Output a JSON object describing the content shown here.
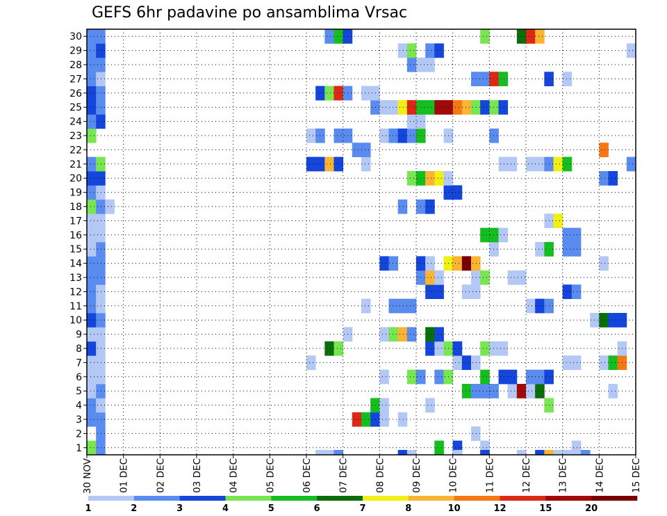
{
  "chart_data": {
    "type": "heatmap",
    "title": "GEFS 6hr padavine po ansamblima Vrsac",
    "xlabel": "",
    "ylabel": "",
    "x_tick_labels": [
      "30 NOV",
      "01 DEC",
      "02 DEC",
      "03 DEC",
      "04 DEC",
      "05 DEC",
      "06 DEC",
      "07 DEC",
      "08 DEC",
      "09 DEC",
      "10 DEC",
      "11 DEC",
      "12 DEC",
      "13 DEC",
      "14 DEC",
      "15 DEC"
    ],
    "y_tick_labels": [
      "1",
      "2",
      "3",
      "4",
      "5",
      "6",
      "7",
      "8",
      "9",
      "10",
      "11",
      "12",
      "13",
      "14",
      "15",
      "16",
      "17",
      "18",
      "19",
      "20",
      "21",
      "22",
      "23",
      "24",
      "25",
      "26",
      "27",
      "28",
      "29",
      "30"
    ],
    "ylim": [
      0,
      30
    ],
    "grid": true,
    "legend": {
      "position": "bottom",
      "levels": [
        "1",
        "2",
        "3",
        "4",
        "5",
        "6",
        "7",
        "8",
        "10",
        "12",
        "15",
        "20"
      ],
      "colors": [
        "#b4c8f5",
        "#5a8cf0",
        "#1446dc",
        "#78e650",
        "#14be1e",
        "#0a6e0a",
        "#f0f014",
        "#fab432",
        "#f57814",
        "#dc2814",
        "#a00a0a",
        "#780000"
      ]
    },
    "colors": {
      "1": "#b4c8f5",
      "2": "#5a8cf0",
      "3": "#1446dc",
      "4": "#78e650",
      "5": "#14be1e",
      "6": "#0a6e0a",
      "7": "#f0f014",
      "8": "#fab432",
      "9": "#f57814",
      "10": "#dc2814",
      "11": "#a00a0a",
      "12": "#780000"
    },
    "cells": [
      [
        1,
        1,
        4
      ],
      [
        1,
        2,
        2
      ],
      [
        2,
        2,
        2
      ],
      [
        3,
        1,
        2
      ],
      [
        3,
        2,
        2
      ],
      [
        4,
        1,
        2
      ],
      [
        4,
        2,
        1
      ],
      [
        5,
        1,
        1
      ],
      [
        5,
        2,
        2
      ],
      [
        6,
        1,
        1
      ],
      [
        6,
        2,
        1
      ],
      [
        7,
        1,
        1
      ],
      [
        7,
        2,
        1
      ],
      [
        8,
        1,
        3
      ],
      [
        8,
        2,
        1
      ],
      [
        9,
        1,
        1
      ],
      [
        9,
        2,
        1
      ],
      [
        10,
        1,
        3
      ],
      [
        10,
        2,
        2
      ],
      [
        11,
        1,
        2
      ],
      [
        11,
        2,
        1
      ],
      [
        12,
        1,
        2
      ],
      [
        12,
        2,
        1
      ],
      [
        13,
        1,
        2
      ],
      [
        13,
        2,
        2
      ],
      [
        14,
        1,
        2
      ],
      [
        14,
        2,
        2
      ],
      [
        15,
        1,
        1
      ],
      [
        15,
        2,
        2
      ],
      [
        16,
        1,
        1
      ],
      [
        16,
        2,
        1
      ],
      [
        17,
        1,
        1
      ],
      [
        17,
        2,
        1
      ],
      [
        18,
        1,
        4
      ],
      [
        18,
        2,
        2
      ],
      [
        18,
        3,
        1
      ],
      [
        19,
        1,
        2
      ],
      [
        19,
        2,
        1
      ],
      [
        20,
        1,
        3
      ],
      [
        20,
        2,
        3
      ],
      [
        21,
        1,
        2
      ],
      [
        21,
        2,
        4
      ],
      [
        23,
        1,
        4
      ],
      [
        24,
        1,
        2
      ],
      [
        24,
        2,
        3
      ],
      [
        25,
        1,
        3
      ],
      [
        25,
        2,
        2
      ],
      [
        26,
        1,
        3
      ],
      [
        26,
        2,
        2
      ],
      [
        27,
        1,
        2
      ],
      [
        27,
        2,
        1
      ],
      [
        28,
        1,
        2
      ],
      [
        28,
        2,
        2
      ],
      [
        29,
        1,
        2
      ],
      [
        29,
        2,
        3
      ],
      [
        30,
        1,
        2
      ],
      [
        30,
        2,
        2
      ],
      [
        1,
        39,
        5
      ],
      [
        1,
        41,
        3
      ],
      [
        1,
        44,
        1
      ],
      [
        1,
        54,
        1
      ],
      [
        1,
        66,
        2
      ],
      [
        1,
        67,
        1
      ],
      [
        2,
        43,
        1
      ],
      [
        3,
        30,
        10
      ],
      [
        3,
        31,
        5
      ],
      [
        3,
        32,
        3
      ],
      [
        3,
        33,
        1
      ],
      [
        3,
        35,
        1
      ],
      [
        4,
        32,
        5
      ],
      [
        4,
        33,
        1
      ],
      [
        4,
        38,
        1
      ],
      [
        4,
        51,
        4
      ],
      [
        5,
        42,
        5
      ],
      [
        5,
        43,
        2
      ],
      [
        5,
        44,
        2
      ],
      [
        5,
        45,
        2
      ],
      [
        5,
        47,
        1
      ],
      [
        5,
        48,
        11
      ],
      [
        5,
        49,
        1
      ],
      [
        5,
        50,
        6
      ],
      [
        5,
        58,
        1
      ],
      [
        6,
        33,
        1
      ],
      [
        6,
        36,
        4
      ],
      [
        6,
        37,
        2
      ],
      [
        6,
        39,
        2
      ],
      [
        6,
        40,
        4
      ],
      [
        6,
        44,
        5
      ],
      [
        6,
        46,
        3
      ],
      [
        6,
        47,
        3
      ],
      [
        6,
        49,
        2
      ],
      [
        6,
        50,
        2
      ],
      [
        6,
        51,
        3
      ],
      [
        7,
        25,
        1
      ],
      [
        7,
        41,
        1
      ],
      [
        7,
        42,
        3
      ],
      [
        7,
        43,
        1
      ],
      [
        7,
        53,
        1
      ],
      [
        7,
        54,
        1
      ],
      [
        7,
        57,
        1
      ],
      [
        7,
        58,
        5
      ],
      [
        7,
        59,
        9
      ],
      [
        8,
        27,
        6
      ],
      [
        8,
        28,
        4
      ],
      [
        8,
        38,
        3
      ],
      [
        8,
        39,
        1
      ],
      [
        8,
        40,
        4
      ],
      [
        8,
        41,
        3
      ],
      [
        8,
        44,
        4
      ],
      [
        8,
        45,
        1
      ],
      [
        8,
        46,
        1
      ],
      [
        8,
        59,
        1
      ],
      [
        9,
        29,
        1
      ],
      [
        9,
        33,
        1
      ],
      [
        9,
        34,
        4
      ],
      [
        9,
        35,
        8
      ],
      [
        9,
        36,
        2
      ],
      [
        9,
        38,
        6
      ],
      [
        9,
        39,
        3
      ],
      [
        10,
        56,
        1
      ],
      [
        10,
        57,
        6
      ],
      [
        10,
        58,
        3
      ],
      [
        10,
        59,
        3
      ],
      [
        11,
        31,
        1
      ],
      [
        11,
        34,
        2
      ],
      [
        11,
        35,
        2
      ],
      [
        11,
        36,
        2
      ],
      [
        11,
        49,
        1
      ],
      [
        11,
        50,
        3
      ],
      [
        11,
        51,
        2
      ],
      [
        12,
        38,
        3
      ],
      [
        12,
        39,
        3
      ],
      [
        12,
        42,
        1
      ],
      [
        12,
        43,
        1
      ],
      [
        12,
        53,
        3
      ],
      [
        12,
        54,
        2
      ],
      [
        13,
        37,
        2
      ],
      [
        13,
        38,
        8
      ],
      [
        13,
        39,
        1
      ],
      [
        13,
        43,
        1
      ],
      [
        13,
        44,
        4
      ],
      [
        13,
        47,
        1
      ],
      [
        13,
        48,
        1
      ],
      [
        14,
        33,
        3
      ],
      [
        14,
        34,
        2
      ],
      [
        14,
        37,
        3
      ],
      [
        14,
        38,
        1
      ],
      [
        14,
        40,
        7
      ],
      [
        14,
        41,
        8
      ],
      [
        14,
        42,
        12
      ],
      [
        14,
        43,
        8
      ],
      [
        14,
        57,
        1
      ],
      [
        15,
        45,
        1
      ],
      [
        15,
        50,
        1
      ],
      [
        15,
        51,
        5
      ],
      [
        15,
        53,
        2
      ],
      [
        15,
        54,
        2
      ],
      [
        16,
        44,
        5
      ],
      [
        16,
        45,
        5
      ],
      [
        16,
        46,
        1
      ],
      [
        16,
        53,
        2
      ],
      [
        16,
        54,
        2
      ],
      [
        17,
        51,
        1
      ],
      [
        17,
        52,
        7
      ],
      [
        18,
        35,
        2
      ],
      [
        18,
        37,
        2
      ],
      [
        18,
        38,
        3
      ],
      [
        19,
        40,
        3
      ],
      [
        19,
        41,
        3
      ],
      [
        20,
        36,
        4
      ],
      [
        20,
        37,
        5
      ],
      [
        20,
        38,
        8
      ],
      [
        20,
        39,
        7
      ],
      [
        20,
        40,
        1
      ],
      [
        20,
        57,
        2
      ],
      [
        20,
        58,
        3
      ],
      [
        21,
        25,
        3
      ],
      [
        21,
        26,
        3
      ],
      [
        21,
        27,
        8
      ],
      [
        21,
        28,
        3
      ],
      [
        21,
        31,
        1
      ],
      [
        21,
        46,
        1
      ],
      [
        21,
        47,
        1
      ],
      [
        21,
        49,
        1
      ],
      [
        21,
        50,
        1
      ],
      [
        21,
        51,
        2
      ],
      [
        21,
        52,
        7
      ],
      [
        21,
        53,
        5
      ],
      [
        21,
        60,
        2
      ],
      [
        22,
        30,
        2
      ],
      [
        22,
        31,
        2
      ],
      [
        22,
        57,
        9
      ],
      [
        23,
        25,
        1
      ],
      [
        23,
        26,
        2
      ],
      [
        23,
        28,
        2
      ],
      [
        23,
        29,
        2
      ],
      [
        23,
        33,
        1
      ],
      [
        23,
        34,
        2
      ],
      [
        23,
        35,
        3
      ],
      [
        23,
        36,
        2
      ],
      [
        23,
        37,
        5
      ],
      [
        23,
        40,
        1
      ],
      [
        23,
        45,
        2
      ],
      [
        24,
        36,
        1
      ],
      [
        24,
        37,
        1
      ],
      [
        25,
        32,
        2
      ],
      [
        25,
        33,
        1
      ],
      [
        25,
        34,
        1
      ],
      [
        25,
        35,
        7
      ],
      [
        25,
        36,
        10
      ],
      [
        25,
        37,
        5
      ],
      [
        25,
        38,
        5
      ],
      [
        25,
        39,
        11
      ],
      [
        25,
        40,
        11
      ],
      [
        25,
        41,
        9
      ],
      [
        25,
        42,
        8
      ],
      [
        25,
        43,
        4
      ],
      [
        25,
        44,
        3
      ],
      [
        25,
        45,
        4
      ],
      [
        25,
        46,
        3
      ],
      [
        26,
        26,
        3
      ],
      [
        26,
        27,
        4
      ],
      [
        26,
        28,
        10
      ],
      [
        26,
        29,
        2
      ],
      [
        26,
        31,
        1
      ],
      [
        26,
        32,
        1
      ],
      [
        27,
        43,
        2
      ],
      [
        27,
        44,
        2
      ],
      [
        27,
        45,
        10
      ],
      [
        27,
        46,
        5
      ],
      [
        27,
        51,
        3
      ],
      [
        27,
        53,
        1
      ],
      [
        28,
        36,
        2
      ],
      [
        28,
        37,
        1
      ],
      [
        28,
        38,
        1
      ],
      [
        29,
        35,
        1
      ],
      [
        29,
        36,
        4
      ],
      [
        29,
        38,
        2
      ],
      [
        29,
        39,
        3
      ],
      [
        29,
        60,
        1
      ],
      [
        30,
        27,
        2
      ],
      [
        30,
        28,
        5
      ],
      [
        30,
        29,
        3
      ],
      [
        30,
        44,
        4
      ],
      [
        30,
        48,
        6
      ],
      [
        30,
        49,
        10
      ],
      [
        30,
        50,
        8
      ]
    ],
    "bottom_edge_cells": [
      [
        26,
        1
      ],
      [
        27,
        1
      ],
      [
        28,
        2
      ],
      [
        35,
        3
      ],
      [
        36,
        1
      ],
      [
        41,
        1
      ],
      [
        44,
        3
      ],
      [
        48,
        1
      ],
      [
        50,
        3
      ],
      [
        51,
        8
      ],
      [
        52,
        1
      ],
      [
        53,
        1
      ],
      [
        54,
        1
      ],
      [
        55,
        2
      ]
    ]
  }
}
